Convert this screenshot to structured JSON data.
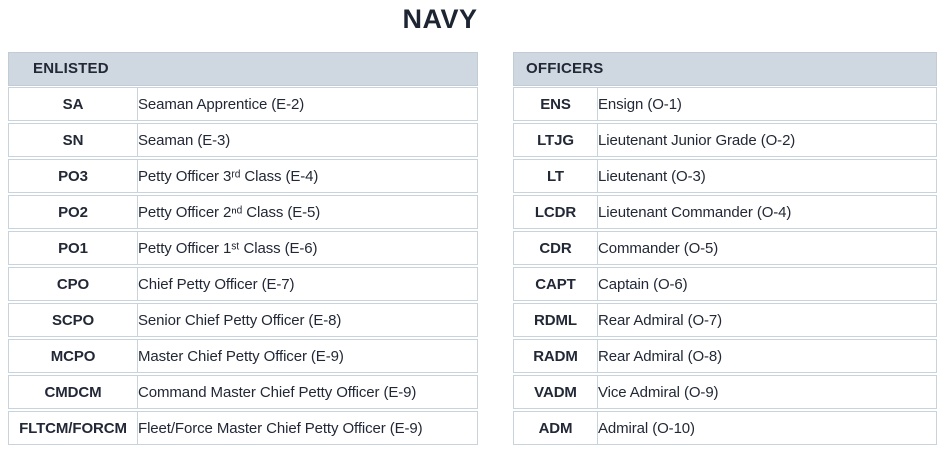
{
  "page": {
    "title": "NAVY"
  },
  "colors": {
    "background": "#ffffff",
    "header_bg": "#cfd8e0",
    "row_border": "#c9d3dc",
    "text": "#222836",
    "title": "#1d2532"
  },
  "enlisted": {
    "header": "ENLISTED",
    "rows": [
      {
        "abbr": "SA",
        "desc": "Seaman Apprentice (E-2)"
      },
      {
        "abbr": "SN",
        "desc": "Seaman (E-3)"
      },
      {
        "abbr": "PO3",
        "desc": "Petty Officer 3ʳᵈ Class (E-4)"
      },
      {
        "abbr": "PO2",
        "desc": "Petty Officer 2ⁿᵈ Class (E-5)"
      },
      {
        "abbr": "PO1",
        "desc": "Petty Officer 1ˢᵗ Class (E-6)"
      },
      {
        "abbr": "CPO",
        "desc": "Chief Petty Officer (E-7)"
      },
      {
        "abbr": "SCPO",
        "desc": "Senior Chief Petty Officer (E-8)"
      },
      {
        "abbr": "MCPO",
        "desc": "Master Chief Petty Officer (E-9)"
      },
      {
        "abbr": "CMDCM",
        "desc": "Command Master Chief Petty Officer (E-9)"
      },
      {
        "abbr": "FLTCM/FORCM",
        "desc": "Fleet/Force Master Chief Petty Officer (E-9)"
      }
    ]
  },
  "officers": {
    "header": "OFFICERS",
    "rows": [
      {
        "abbr": "ENS",
        "desc": "Ensign (O-1)"
      },
      {
        "abbr": "LTJG",
        "desc": "Lieutenant Junior Grade (O-2)"
      },
      {
        "abbr": "LT",
        "desc": "Lieutenant (O-3)"
      },
      {
        "abbr": "LCDR",
        "desc": "Lieutenant Commander (O-4)"
      },
      {
        "abbr": "CDR",
        "desc": "Commander (O-5)"
      },
      {
        "abbr": "CAPT",
        "desc": "Captain (O-6)"
      },
      {
        "abbr": "RDML",
        "desc": "Rear Admiral (O-7)"
      },
      {
        "abbr": "RADM",
        "desc": "Rear Admiral (O-8)"
      },
      {
        "abbr": "VADM",
        "desc": "Vice Admiral (O-9)"
      },
      {
        "abbr": "ADM",
        "desc": "Admiral (O-10)"
      }
    ]
  }
}
